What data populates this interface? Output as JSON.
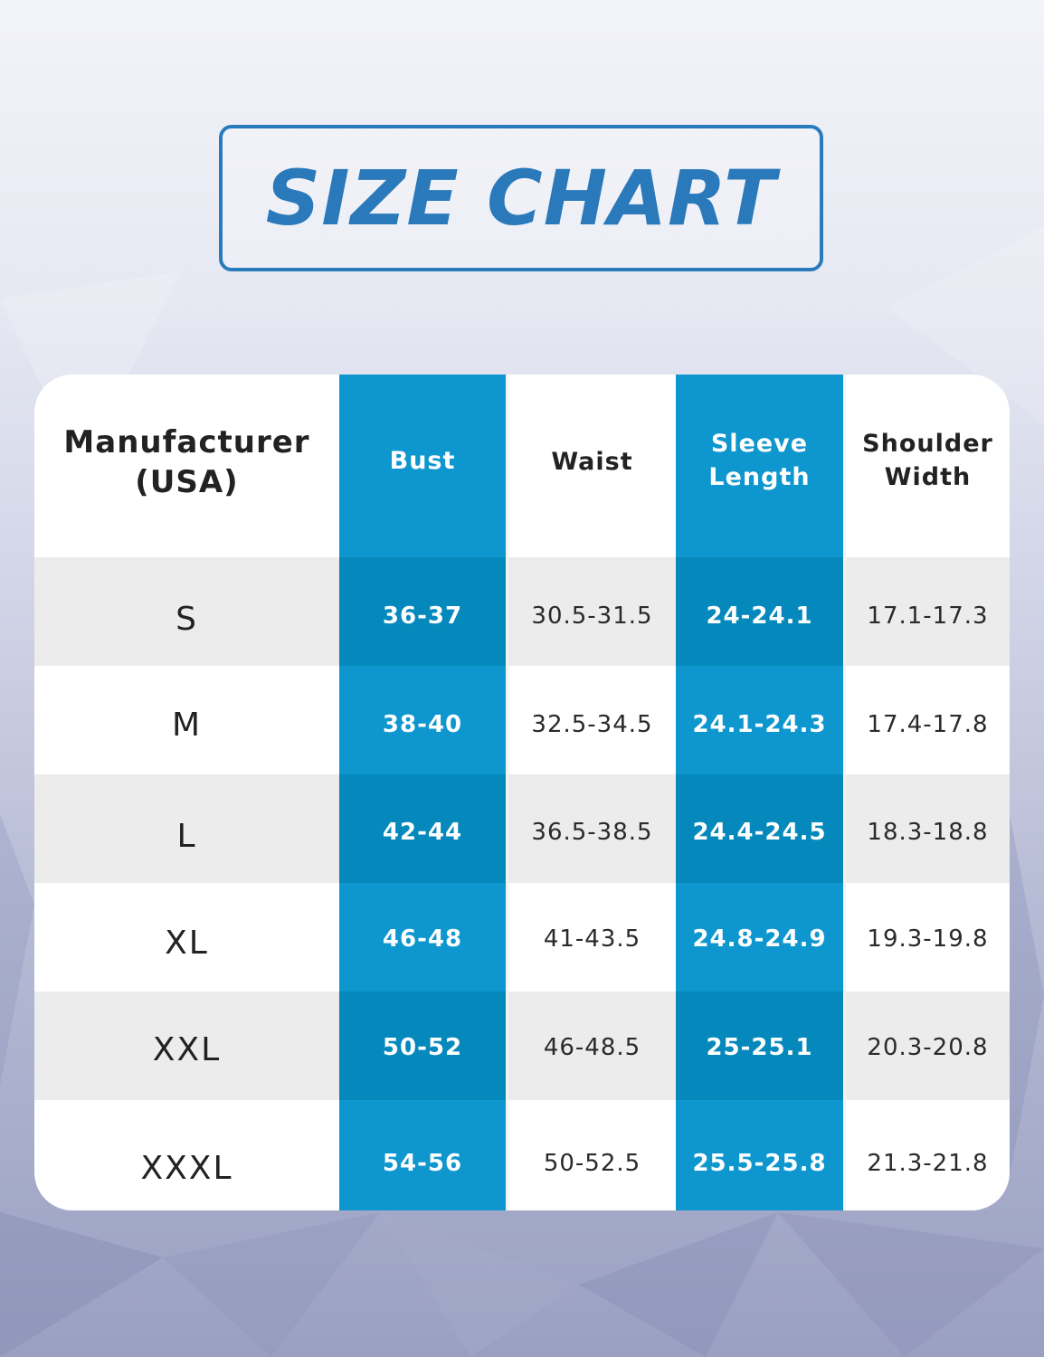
{
  "title": "SIZE CHART",
  "colors": {
    "title_blue": "#2a79ba",
    "column_blue": "#0e97cf",
    "column_blue_dark": "#0589bc",
    "stripe_gray": "#ececec"
  },
  "table": {
    "headers": [
      {
        "line1": "Manufacturer",
        "line2": "(USA)"
      },
      {
        "line1": "Bust",
        "line2": ""
      },
      {
        "line1": "Waist",
        "line2": ""
      },
      {
        "line1": "Sleeve",
        "line2": "Length"
      },
      {
        "line1": "Shoulder",
        "line2": "Width"
      }
    ],
    "rows": [
      {
        "size": "S",
        "bust": "36-37",
        "waist": "30.5-31.5",
        "sleeve": "24-24.1",
        "shoulder": "17.1-17.3"
      },
      {
        "size": "M",
        "bust": "38-40",
        "waist": "32.5-34.5",
        "sleeve": "24.1-24.3",
        "shoulder": "17.4-17.8"
      },
      {
        "size": "L",
        "bust": "42-44",
        "waist": "36.5-38.5",
        "sleeve": "24.4-24.5",
        "shoulder": "18.3-18.8"
      },
      {
        "size": "XL",
        "bust": "46-48",
        "waist": "41-43.5",
        "sleeve": "24.8-24.9",
        "shoulder": "19.3-19.8"
      },
      {
        "size": "XXL",
        "bust": "50-52",
        "waist": "46-48.5",
        "sleeve": "25-25.1",
        "shoulder": "20.3-20.8"
      },
      {
        "size": "XXXL",
        "bust": "54-56",
        "waist": "50-52.5",
        "sleeve": "25.5-25.8",
        "shoulder": "21.3-21.8"
      }
    ]
  }
}
